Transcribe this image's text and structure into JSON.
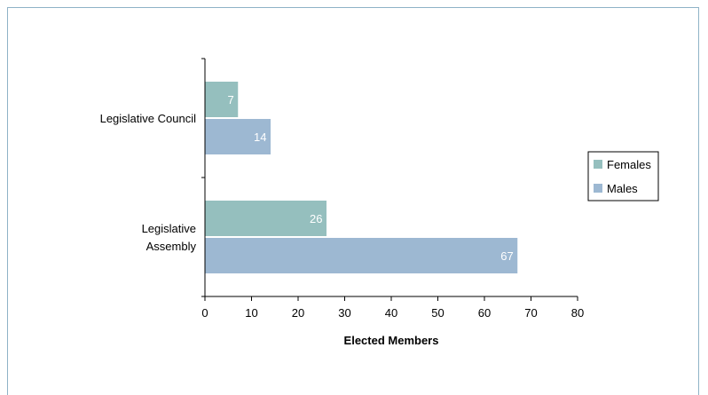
{
  "chart_data": {
    "type": "bar",
    "orientation": "horizontal",
    "categories": [
      "Legislative Council",
      "Legislative Assembly"
    ],
    "category_labels": [
      [
        "Legislative Council"
      ],
      [
        "Legislative",
        "Assembly"
      ]
    ],
    "series": [
      {
        "name": "Females",
        "color": "#95bfbe",
        "values": [
          7,
          26
        ]
      },
      {
        "name": "Males",
        "color": "#9db8d2",
        "values": [
          14,
          67
        ]
      }
    ],
    "xlabel": "Elected Members",
    "xlim": [
      0,
      80
    ],
    "xticks": [
      0,
      10,
      20,
      30,
      40,
      50,
      60,
      70,
      80
    ],
    "grid": false,
    "legend_position": "right",
    "data_labels": true
  },
  "colors": {
    "frame_border": "#8fb3c7",
    "axis": "#000000",
    "data_label": "#ffffff"
  }
}
